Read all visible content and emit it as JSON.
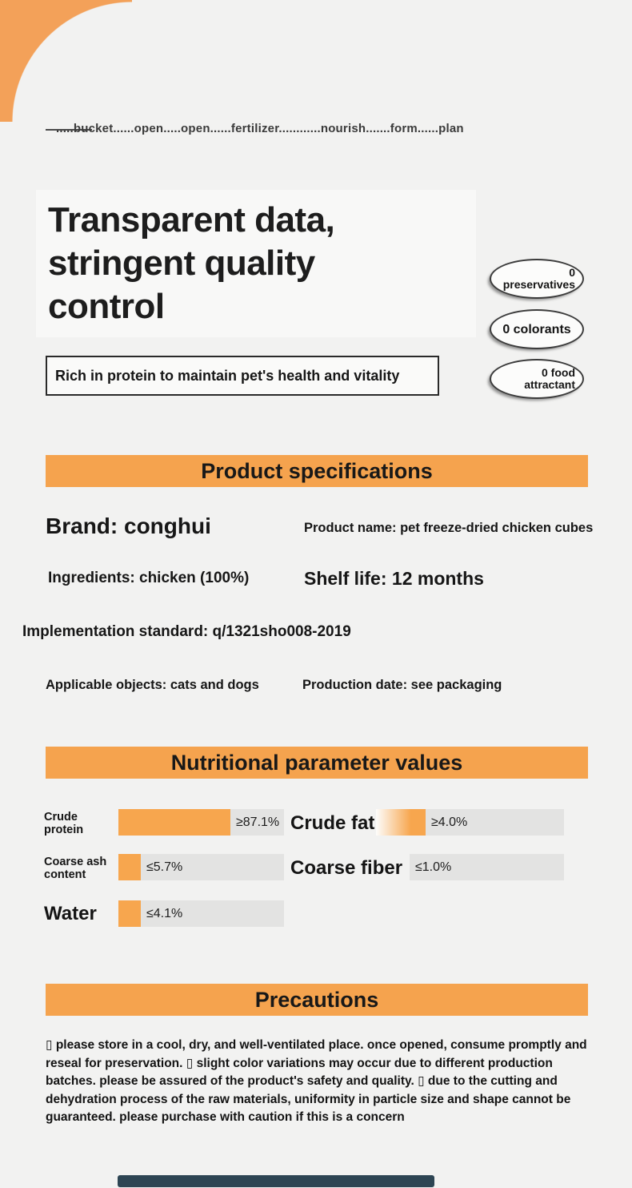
{
  "page": {
    "accent_color": "#f5a34e",
    "bar_track_color": "#e3e3e2",
    "background_color": "#f2f2f1",
    "bottom_bar_color": "#2d4553"
  },
  "top_nav": {
    "dotted_line": ".....bucket......open.....open......fertilizer............nourish.......form......plan"
  },
  "hero": {
    "title": "Transparent data,\nstringent quality\ncontrol",
    "subtitle": "Rich in protein to maintain pet's health and vitality",
    "badges": [
      {
        "label": "0\npreservatives"
      },
      {
        "label": "0 colorants"
      },
      {
        "label": "0 food\nattractant"
      }
    ]
  },
  "specifications": {
    "header": "Product specifications",
    "brand": "Brand: conghui",
    "product_name": "Product name: pet freeze-dried chicken cubes",
    "ingredients": "Ingredients: chicken (100%)",
    "shelf_life": "Shelf life: 12 months",
    "implementation_standard": "Implementation standard: q/1321sho008-2019",
    "applicable_objects": "Applicable objects: cats and dogs",
    "production_date": "Production date: see packaging"
  },
  "nutrition": {
    "header": "Nutritional parameter values",
    "rows": [
      {
        "label": "Crude protein",
        "value": "≥87.1%"
      },
      {
        "label": "Crude fat",
        "value": "≥4.0%"
      },
      {
        "label": "Coarse ash content",
        "value": "≤5.7%"
      },
      {
        "label": "Coarse fiber",
        "value": "≤1.0%"
      },
      {
        "label": "Water",
        "value": "≤4.1%"
      }
    ]
  },
  "precautions": {
    "header": "Precautions",
    "text": "▯ please store in a cool, dry, and well-ventilated place. once opened, consume promptly and reseal for preservation. ▯ slight color variations may occur due to different production batches. please be assured of the product's safety and quality. ▯ due to the cutting and dehydration process of the raw materials, uniformity in particle size and shape cannot be guaranteed. please purchase with caution if this is a concern"
  }
}
